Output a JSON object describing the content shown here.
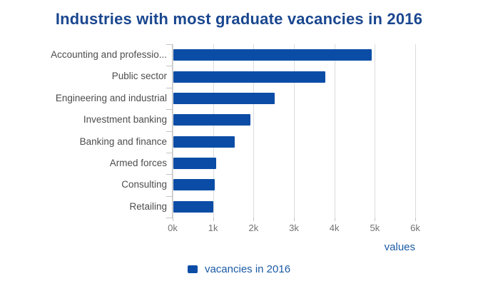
{
  "page": {
    "background": "#ffffff"
  },
  "colors": {
    "bar": "#0b4da6",
    "title": "#1a478f",
    "axis_title": "#1a5aa5",
    "legend_text": "#1a5aa5",
    "category_label": "#4d4d4d",
    "tick_label": "#737373",
    "gridline": "#dcdcdc",
    "tick": "#c4c4c4"
  },
  "chart_data": {
    "type": "bar",
    "orientation": "horizontal",
    "title": "Industries with most graduate vacancies in 2016",
    "categories": [
      "Accounting and professio...",
      "Public sector",
      "Engineering and industrial",
      "Investment banking",
      "Banking and finance",
      "Armed forces",
      "Consulting",
      "Retailing"
    ],
    "series": [
      {
        "name": "vacancies in 2016",
        "values": [
          4900,
          3750,
          2500,
          1900,
          1520,
          1060,
          1030,
          990
        ]
      }
    ],
    "xlabel": "values",
    "xlim": [
      0,
      6000
    ],
    "x_tick_interval": 1000,
    "x_tick_labels": [
      "0k",
      "1k",
      "2k",
      "3k",
      "4k",
      "5k",
      "6k"
    ],
    "grid": true,
    "legend": {
      "label": "vacancies in 2016",
      "position": "bottom-center"
    }
  }
}
